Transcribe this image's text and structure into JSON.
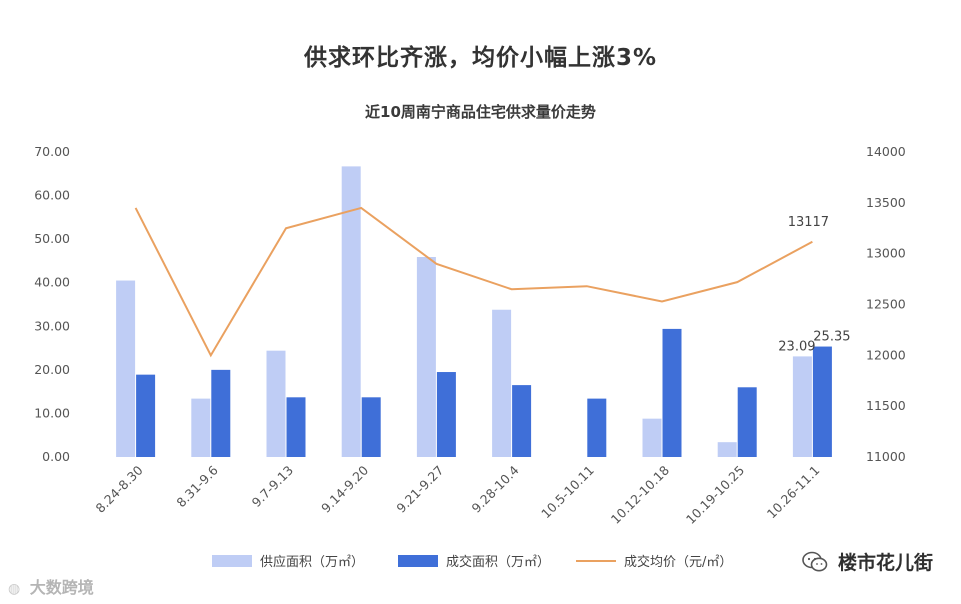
{
  "headline": "供求环比齐涨，均价小幅上涨3%",
  "footer": {
    "left_brand": "大数跨境",
    "right_brand": "楼市花儿街"
  },
  "colors": {
    "supply": "#bfcdf5",
    "deal": "#3f6fd8",
    "price": "#eaa160"
  },
  "chart_data": {
    "type": "bar",
    "title": "近10周南宁商品住宅供求量价走势",
    "categories": [
      "8.24-8.30",
      "8.31-9.6",
      "9.7-9.13",
      "9.14-9.20",
      "9.21-9.27",
      "9.28-10.4",
      "10.5-10.11",
      "10.12-10.18",
      "10.19-10.25",
      "10.26-11.1"
    ],
    "y_left": {
      "ylim": [
        0,
        70
      ],
      "ticks": [
        "0.00",
        "10.00",
        "20.00",
        "30.00",
        "40.00",
        "50.00",
        "60.00",
        "70.00"
      ]
    },
    "y_right": {
      "ylim": [
        11000,
        14000
      ],
      "ticks": [
        "11000",
        "11500",
        "12000",
        "12500",
        "13000",
        "13500",
        "14000"
      ]
    },
    "series": [
      {
        "name": "供应面积（万㎡）",
        "type": "bar",
        "axis": "left",
        "values": [
          40.5,
          13.4,
          24.4,
          66.7,
          45.9,
          33.8,
          0,
          8.8,
          3.4,
          23.09
        ]
      },
      {
        "name": "成交面积（万㎡）",
        "type": "bar",
        "axis": "left",
        "values": [
          18.9,
          20.0,
          13.7,
          13.7,
          19.5,
          16.5,
          13.4,
          29.4,
          16.0,
          25.35
        ]
      },
      {
        "name": "成交均价（元/㎡）",
        "type": "line",
        "axis": "right",
        "values": [
          13450,
          12000,
          13250,
          13450,
          12900,
          12650,
          12680,
          12530,
          12720,
          13117
        ]
      }
    ],
    "data_labels": [
      {
        "series": 0,
        "index": 9,
        "text": "23.09"
      },
      {
        "series": 1,
        "index": 9,
        "text": "25.35"
      },
      {
        "series": 2,
        "index": 9,
        "text": "13117"
      }
    ],
    "legend": "bottom",
    "grid": false
  }
}
